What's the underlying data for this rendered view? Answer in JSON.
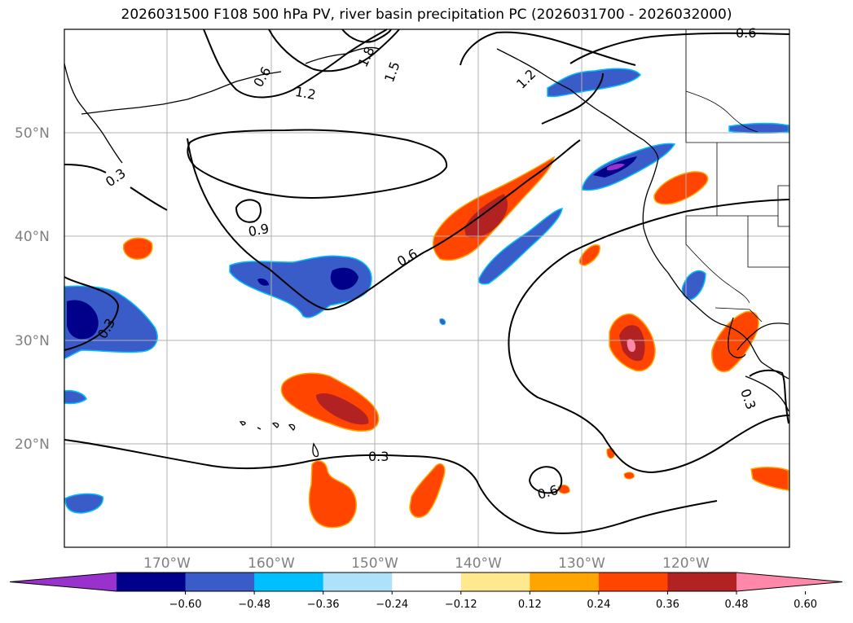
{
  "title": "2026031500 F108 500 hPa PV, river basin precipitation PC (2026031700 - 2026032000)",
  "lat_labels": [
    "50°N",
    "40°N",
    "30°N",
    "20°N"
  ],
  "lon_labels": [
    "170°W",
    "160°W",
    "150°W",
    "140°W",
    "130°W",
    "120°W"
  ],
  "contour_labels": [
    "0.3",
    "0.6",
    "0.9",
    "1.2",
    "1.5",
    "1.8",
    "0.6",
    "0.6",
    "0.3",
    "0.3",
    "0.6",
    "0.3",
    "1.2"
  ],
  "colorbar": {
    "ticks": [
      "−0.60",
      "−0.48",
      "−0.36",
      "−0.24",
      "−0.12",
      "0.12",
      "0.24",
      "0.36",
      "0.48",
      "0.60"
    ],
    "colors": [
      "#9932CC",
      "#00008B",
      "#3A5CC9",
      "#00BFFF",
      "#ADE2FA",
      "#FFFFFF",
      "#FFE88E",
      "#FFA500",
      "#FF4500",
      "#B22222",
      "#FF88AA"
    ]
  },
  "colors": {
    "contour": "#000000",
    "grid": "#b0b0b0",
    "coast": "#000000"
  }
}
